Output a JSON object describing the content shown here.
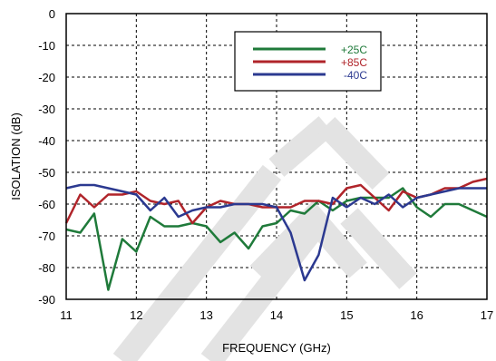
{
  "chart_data": {
    "type": "line",
    "xlabel": "FREQUENCY (GHz)",
    "ylabel": "ISOLATION (dB)",
    "xlim": [
      11,
      17
    ],
    "ylim": [
      -90,
      0
    ],
    "xticks": [
      "11",
      "12",
      "13",
      "14",
      "15",
      "16",
      "17"
    ],
    "yticks": [
      "0",
      "-10",
      "-20",
      "-30",
      "-40",
      "-50",
      "-60",
      "-70",
      "-80",
      "-90"
    ],
    "grid": true,
    "legend_position": "top-center",
    "watermark": "LITE",
    "series": [
      {
        "name": "+25C",
        "color": "#1f7a3a",
        "x": [
          11.0,
          11.2,
          11.4,
          11.6,
          11.8,
          12.0,
          12.2,
          12.4,
          12.6,
          12.8,
          13.0,
          13.2,
          13.4,
          13.6,
          13.8,
          14.0,
          14.2,
          14.4,
          14.6,
          14.8,
          15.0,
          15.2,
          15.4,
          15.6,
          15.8,
          16.0,
          16.2,
          16.4,
          16.6,
          16.8,
          17.0
        ],
        "y": [
          -68,
          -69,
          -63,
          -87,
          -71,
          -75,
          -64,
          -67,
          -67,
          -66,
          -67,
          -72,
          -69,
          -74,
          -67,
          -66,
          -62,
          -63,
          -59,
          -62,
          -59,
          -58,
          -58,
          -58,
          -55,
          -61,
          -64,
          -60,
          -60,
          -62,
          -64
        ]
      },
      {
        "name": "+85C",
        "color": "#b0242a",
        "x": [
          11.0,
          11.2,
          11.4,
          11.6,
          11.8,
          12.0,
          12.2,
          12.4,
          12.6,
          12.8,
          13.0,
          13.2,
          13.4,
          13.6,
          13.8,
          14.0,
          14.2,
          14.4,
          14.6,
          14.8,
          15.0,
          15.2,
          15.4,
          15.6,
          15.8,
          16.0,
          16.2,
          16.4,
          16.6,
          16.8,
          17.0
        ],
        "y": [
          -66,
          -57,
          -61,
          -57,
          -57,
          -56,
          -59,
          -60,
          -59,
          -66,
          -61,
          -59,
          -60,
          -60,
          -61,
          -61,
          -61,
          -59,
          -59,
          -60,
          -55,
          -54,
          -58,
          -62,
          -56,
          -58,
          -57,
          -55,
          -55,
          -53,
          -52
        ]
      },
      {
        "name": "-40C",
        "color": "#2b3990",
        "x": [
          11.0,
          11.2,
          11.4,
          11.6,
          11.8,
          12.0,
          12.2,
          12.4,
          12.6,
          12.8,
          13.0,
          13.2,
          13.4,
          13.6,
          13.8,
          14.0,
          14.2,
          14.4,
          14.6,
          14.8,
          15.0,
          15.2,
          15.4,
          15.6,
          15.8,
          16.0,
          16.2,
          16.4,
          16.6,
          16.8,
          17.0
        ],
        "y": [
          -55,
          -54,
          -54,
          -55,
          -56,
          -57,
          -62,
          -58,
          -64,
          -62,
          -61,
          -61,
          -60,
          -60,
          -60,
          -61,
          -69,
          -84,
          -76,
          -58,
          -61,
          -58,
          -60,
          -57,
          -61,
          -58,
          -57,
          -56,
          -55,
          -55,
          -55
        ]
      }
    ]
  }
}
